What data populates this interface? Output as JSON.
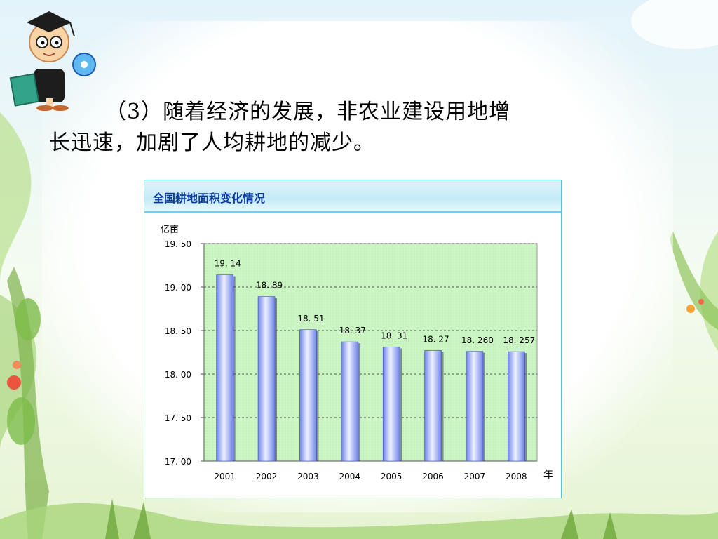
{
  "slide": {
    "heading_line1": "（3）随着经济的发展，非农业建设用地增",
    "heading_line2": "长迅速，加剧了人均耕地的减少。"
  },
  "chart_data": {
    "type": "bar",
    "title": "全国耕地面积变化情况",
    "ylabel": "亿亩",
    "xlabel": "年",
    "categories": [
      "2001",
      "2002",
      "2003",
      "2004",
      "2005",
      "2006",
      "2007",
      "2008"
    ],
    "values": [
      19.14,
      18.89,
      18.51,
      18.37,
      18.31,
      18.27,
      18.26,
      18.257
    ],
    "value_labels": [
      "19. 14",
      "18. 89",
      "18. 51",
      "18. 37",
      "18. 31",
      "18. 27",
      "18. 260",
      "18. 257"
    ],
    "yticks": [
      17.0,
      17.5,
      18.0,
      18.5,
      19.0,
      19.5
    ],
    "ytick_labels": [
      "17. 00",
      "17. 50",
      "18. 00",
      "18. 50",
      "19. 00",
      "19. 50"
    ],
    "ylim": [
      17.0,
      19.5
    ],
    "grid": true,
    "colors": {
      "plot_bg": "#ccf5c4",
      "bar": "#6f83ea",
      "bar_highlight": "#eef1ff",
      "title_text": "#0b3a9f",
      "frame": "#4fc3ea"
    }
  }
}
